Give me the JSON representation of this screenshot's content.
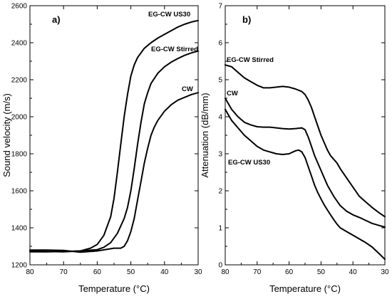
{
  "chart_data": [
    {
      "type": "line",
      "panel_label": "a)",
      "xlabel": "Temperature (°C)",
      "ylabel": "Sound velocity (m/s)",
      "xlim": [
        80,
        30
      ],
      "ylim": [
        1200,
        2600
      ],
      "xticks": [
        80,
        70,
        60,
        50,
        40,
        30
      ],
      "yticks": [
        1200,
        1400,
        1600,
        1800,
        2000,
        2200,
        2400,
        2600
      ],
      "grid": false,
      "series": [
        {
          "name": "EG-CW US30",
          "x": [
            80,
            75,
            70,
            65,
            62,
            60,
            58,
            56,
            55,
            54,
            53,
            52,
            51,
            50,
            49,
            48,
            46,
            44,
            42,
            40,
            38,
            36,
            34,
            32,
            30
          ],
          "y": [
            1270,
            1270,
            1272,
            1275,
            1290,
            1310,
            1360,
            1460,
            1560,
            1700,
            1850,
            2000,
            2120,
            2220,
            2280,
            2320,
            2370,
            2400,
            2425,
            2445,
            2465,
            2485,
            2500,
            2512,
            2520
          ]
        },
        {
          "name": "EG-CW Stirred",
          "x": [
            80,
            75,
            70,
            65,
            60,
            58,
            56,
            54,
            52,
            51,
            50,
            49,
            48,
            47,
            46,
            45,
            44,
            42,
            40,
            38,
            36,
            34,
            32,
            30
          ],
          "y": [
            1275,
            1272,
            1270,
            1275,
            1282,
            1295,
            1320,
            1370,
            1450,
            1510,
            1600,
            1720,
            1850,
            1970,
            2070,
            2130,
            2180,
            2235,
            2270,
            2295,
            2315,
            2332,
            2345,
            2355
          ]
        },
        {
          "name": "CW",
          "x": [
            80,
            75,
            70,
            65,
            60,
            55,
            53,
            52,
            51,
            50,
            49,
            48,
            47,
            46,
            45,
            44,
            43,
            42,
            40,
            38,
            36,
            34,
            32,
            30
          ],
          "y": [
            1280,
            1280,
            1278,
            1268,
            1275,
            1290,
            1290,
            1300,
            1330,
            1380,
            1450,
            1550,
            1650,
            1750,
            1830,
            1900,
            1945,
            1980,
            2030,
            2065,
            2090,
            2105,
            2120,
            2130
          ]
        }
      ]
    },
    {
      "type": "line",
      "panel_label": "b)",
      "xlabel": "Temperature (°C)",
      "ylabel": "Attenuation (dB/mm)",
      "xlim": [
        80,
        30
      ],
      "ylim": [
        0,
        7
      ],
      "xticks": [
        80,
        70,
        60,
        50,
        40,
        30
      ],
      "yticks": [
        0,
        1,
        2,
        3,
        4,
        5,
        6,
        7
      ],
      "grid": false,
      "series": [
        {
          "name": "EG-CW Stirred",
          "x": [
            80,
            78,
            76,
            74,
            72,
            70,
            68,
            66,
            64,
            62,
            60,
            58,
            56,
            55,
            54,
            53,
            52,
            51,
            50,
            49,
            48,
            47,
            46,
            45,
            44,
            42,
            40,
            38,
            36,
            34,
            32,
            30
          ],
          "y": [
            5.4,
            5.35,
            5.2,
            5.05,
            4.95,
            4.85,
            4.78,
            4.78,
            4.8,
            4.82,
            4.8,
            4.75,
            4.68,
            4.6,
            4.45,
            4.25,
            4.0,
            3.75,
            3.5,
            3.3,
            3.1,
            2.95,
            2.85,
            2.75,
            2.6,
            2.35,
            2.1,
            1.85,
            1.7,
            1.55,
            1.42,
            1.3
          ]
        },
        {
          "name": "CW",
          "x": [
            80,
            78,
            76,
            74,
            72,
            70,
            68,
            66,
            64,
            62,
            60,
            58,
            56,
            55,
            54,
            53,
            52,
            51,
            50,
            49,
            48,
            46,
            44,
            42,
            40,
            38,
            36,
            34,
            32,
            30
          ],
          "y": [
            4.5,
            4.2,
            4.0,
            3.85,
            3.78,
            3.73,
            3.72,
            3.72,
            3.7,
            3.68,
            3.67,
            3.68,
            3.7,
            3.65,
            3.45,
            3.2,
            2.95,
            2.75,
            2.55,
            2.35,
            2.15,
            1.85,
            1.6,
            1.45,
            1.35,
            1.28,
            1.2,
            1.12,
            1.07,
            1.02
          ]
        },
        {
          "name": "EG-CW US30",
          "x": [
            80,
            78,
            76,
            74,
            72,
            70,
            68,
            66,
            64,
            62,
            60,
            58,
            57,
            56,
            55,
            54,
            53,
            52,
            51,
            50,
            49,
            48,
            47,
            46,
            45,
            44,
            42,
            40,
            38,
            36,
            34,
            32,
            30
          ],
          "y": [
            4.2,
            3.9,
            3.7,
            3.5,
            3.35,
            3.2,
            3.1,
            3.05,
            3.0,
            2.98,
            3.0,
            3.08,
            3.1,
            3.05,
            2.9,
            2.65,
            2.4,
            2.15,
            1.95,
            1.78,
            1.62,
            1.48,
            1.35,
            1.22,
            1.1,
            1.0,
            0.9,
            0.8,
            0.7,
            0.6,
            0.48,
            0.32,
            0.15
          ]
        }
      ]
    }
  ]
}
